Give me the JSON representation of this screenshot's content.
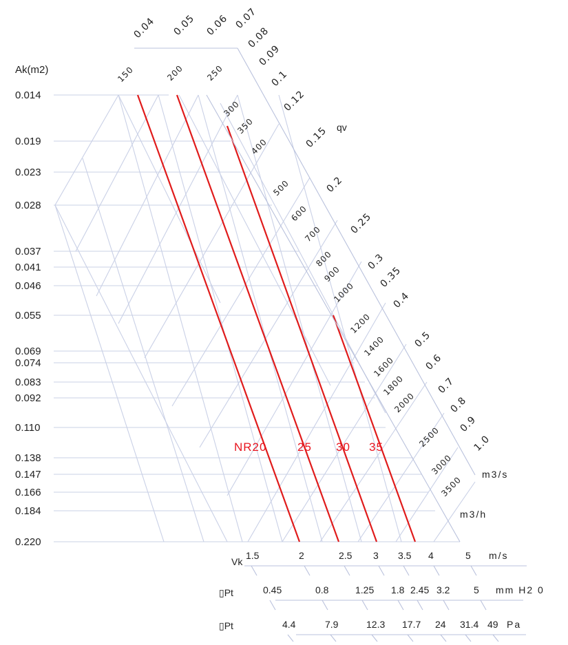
{
  "chart_data": {
    "type": "nomogram",
    "title": "",
    "area_axis": {
      "label": "Ak(m2)",
      "values": [
        "0.014",
        "0.019",
        "0.023",
        "0.028",
        "0.037",
        "0.041",
        "0.046",
        "0.055",
        "0.069",
        "0.074",
        "0.083",
        "0.092",
        "0.110",
        "0.138",
        "0.147",
        "0.166",
        "0.184",
        "0.220"
      ]
    },
    "qv_m3s": {
      "label": "qv",
      "unit": "m3/s",
      "values": [
        "0.04",
        "0.05",
        "0.06",
        "0.07",
        "0.08",
        "0.09",
        "0.1",
        "0.12",
        "0.15",
        "0.2",
        "0.25",
        "0.3",
        "0.35",
        "0.4",
        "0.5",
        "0.6",
        "0.7",
        "0.8",
        "0.9",
        "1.0"
      ]
    },
    "qv_m3h": {
      "unit": "m3/h",
      "values": [
        "150",
        "200",
        "250",
        "300",
        "350",
        "400",
        "500",
        "600",
        "700",
        "800",
        "900",
        "1000",
        "1200",
        "1400",
        "1600",
        "1800",
        "2000",
        "2500",
        "3000",
        "3500"
      ]
    },
    "velocity": {
      "label": "Vk",
      "unit": "m/s",
      "values": [
        "1.5",
        "2",
        "2.5",
        "3",
        "3.5",
        "4",
        "5"
      ]
    },
    "pressure_mmh2o": {
      "label": "▯Pt",
      "unit": "mm H2 0",
      "values": [
        "0.45",
        "0.8",
        "1.25",
        "1.8",
        "2.45",
        "3.2",
        "5"
      ]
    },
    "pressure_pa": {
      "label": "▯Pt",
      "unit": "Pa",
      "values": [
        "4.4",
        "7.9",
        "12.3",
        "17.7",
        "24",
        "31.4",
        "49"
      ]
    },
    "noise_curves": {
      "labels": [
        "NR20",
        "25",
        "30",
        "35"
      ],
      "color": "#e01b1b"
    },
    "grid_color": "#c9d0e6"
  }
}
